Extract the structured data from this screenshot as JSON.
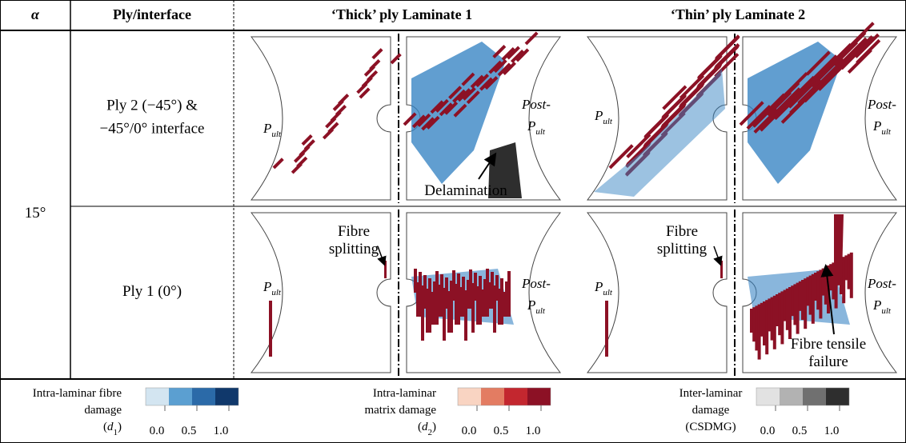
{
  "header": {
    "alpha": "α",
    "ply": "Ply/interface",
    "thick": "‘Thick’ ply Laminate 1",
    "thin": "‘Thin’ ply Laminate 2"
  },
  "angle": "15°",
  "rows": [
    {
      "label": [
        "Ply 2 (−45°) &",
        "−45°/0° interface"
      ],
      "thick": {
        "left": {
          "symbol": "P",
          "sub": "ult"
        },
        "right": {
          "prefix": "Post-",
          "symbol": "P",
          "sub": "ult"
        },
        "annotation": [
          "Delamination"
        ]
      },
      "thin": {
        "left": {
          "symbol": "P",
          "sub": "ult"
        },
        "right": {
          "prefix": "Post-",
          "symbol": "P",
          "sub": "ult"
        }
      }
    },
    {
      "label": [
        "Ply 1 (0°)"
      ],
      "thick": {
        "left": {
          "symbol": "P",
          "sub": "ult"
        },
        "right": {
          "prefix": "Post-",
          "symbol": "P",
          "sub": "ult"
        },
        "annotation": [
          "Fibre",
          "splitting"
        ]
      },
      "thin": {
        "left": {
          "symbol": "P",
          "sub": "ult"
        },
        "right": {
          "prefix": "Post-",
          "symbol": "P",
          "sub": "ult"
        },
        "annotation": [
          "Fibre",
          "splitting"
        ],
        "annotation2": [
          "Fibre tensile",
          "failure"
        ]
      }
    }
  ],
  "legend": [
    {
      "label": [
        "Intra-laminar fibre",
        "damage"
      ],
      "symbol": {
        "open": "(",
        "var": "d",
        "sub": "1",
        "close": ")"
      },
      "ticks": [
        "0.0",
        "0.5",
        "1.0"
      ],
      "colors": [
        "#d3e5f1",
        "#5b9fd1",
        "#2b6aa8",
        "#10386b"
      ]
    },
    {
      "label": [
        "Intra-laminar",
        "matrix damage"
      ],
      "symbol": {
        "open": "(",
        "var": "d",
        "sub": "2",
        "close": ")"
      },
      "ticks": [
        "0.0",
        "0.5",
        "1.0"
      ],
      "colors": [
        "#f9d4c2",
        "#e37c62",
        "#c3272f",
        "#8c1125"
      ]
    },
    {
      "label": [
        "Inter-laminar",
        "damage",
        "(CSDMG)"
      ],
      "ticks": [
        "0.0",
        "0.5",
        "1.0"
      ],
      "colors": [
        "#e2e2e2",
        "#b2b2b2",
        "#707070",
        "#2e2e2e"
      ]
    }
  ]
}
